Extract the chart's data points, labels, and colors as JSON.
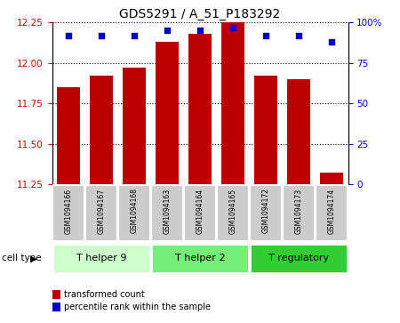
{
  "title": "GDS5291 / A_51_P183292",
  "samples": [
    "GSM1094166",
    "GSM1094167",
    "GSM1094168",
    "GSM1094163",
    "GSM1094164",
    "GSM1094165",
    "GSM1094172",
    "GSM1094173",
    "GSM1094174"
  ],
  "transformed_counts": [
    11.85,
    11.92,
    11.97,
    12.13,
    12.18,
    12.25,
    11.92,
    11.9,
    11.32
  ],
  "percentile_ranks": [
    92,
    92,
    92,
    95,
    95,
    97,
    92,
    92,
    88
  ],
  "ylim": [
    11.25,
    12.25
  ],
  "y2lim": [
    0,
    100
  ],
  "yticks": [
    11.25,
    11.5,
    11.75,
    12.0,
    12.25
  ],
  "y2ticks": [
    0,
    25,
    50,
    75,
    100
  ],
  "bar_color": "#bb0000",
  "dot_color": "#0000cc",
  "cell_types": [
    {
      "label": "T helper 9",
      "indices": [
        0,
        1,
        2
      ],
      "color": "#ccffcc"
    },
    {
      "label": "T helper 2",
      "indices": [
        3,
        4,
        5
      ],
      "color": "#77ee77"
    },
    {
      "label": "T regulatory",
      "indices": [
        6,
        7,
        8
      ],
      "color": "#33cc33"
    }
  ],
  "legend_items": [
    {
      "label": "transformed count",
      "color": "#bb0000"
    },
    {
      "label": "percentile rank within the sample",
      "color": "#0000cc"
    }
  ],
  "cell_type_label": "cell type",
  "tick_label_color_left": "#cc0000",
  "tick_label_color_right": "#0000cc",
  "bar_width": 0.7,
  "sample_bg_color": "#cccccc"
}
